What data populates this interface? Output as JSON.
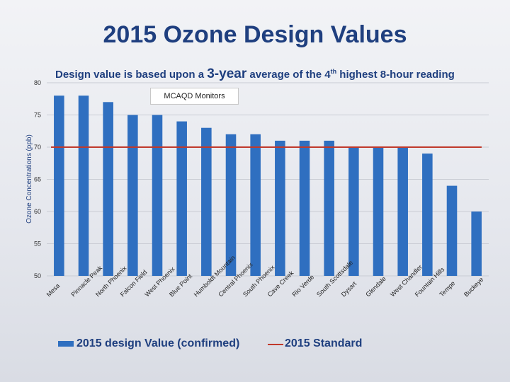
{
  "slide": {
    "title": "2015 Ozone Design Values",
    "subtitle_pre": "Design value is based upon a ",
    "subtitle_big": "3-year",
    "subtitle_mid": " average of the 4",
    "subtitle_sup": "th",
    "subtitle_post": " highest 8-hour reading",
    "monitors_label": "MCAQD Monitors"
  },
  "legend": {
    "bar_label": "2015 design Value (confirmed)",
    "line_label": "2015 Standard"
  },
  "colors": {
    "bar": "#2f6fc0",
    "standard_line": "#c0392b",
    "title": "#1f3f7f"
  },
  "chart_data": {
    "type": "bar",
    "ylabel": "Ozone Concentrations (ppb)",
    "ylim": [
      50,
      80
    ],
    "yticks": [
      50,
      55,
      60,
      65,
      70,
      75,
      80
    ],
    "grid": true,
    "categories": [
      "Mesa",
      "Pinnacle Peak",
      "North Phoenix",
      "Falcon Field",
      "West Phoenix",
      "Blue Point",
      "Humboldt Mountain",
      "Central Phoenix",
      "South Phoenix",
      "Cave Creek",
      "Rio Verde",
      "South Scottsdale",
      "Dysart",
      "Glendale",
      "West Chandler",
      "Fountain Hills",
      "Tempe",
      "Buckeye"
    ],
    "series": [
      {
        "name": "2015 design Value (confirmed)",
        "values": [
          78,
          78,
          77,
          75,
          75,
          74,
          73,
          72,
          72,
          71,
          71,
          71,
          70,
          70,
          70,
          69,
          64,
          60
        ]
      }
    ],
    "standard": {
      "name": "2015 Standard",
      "value": 70
    }
  }
}
